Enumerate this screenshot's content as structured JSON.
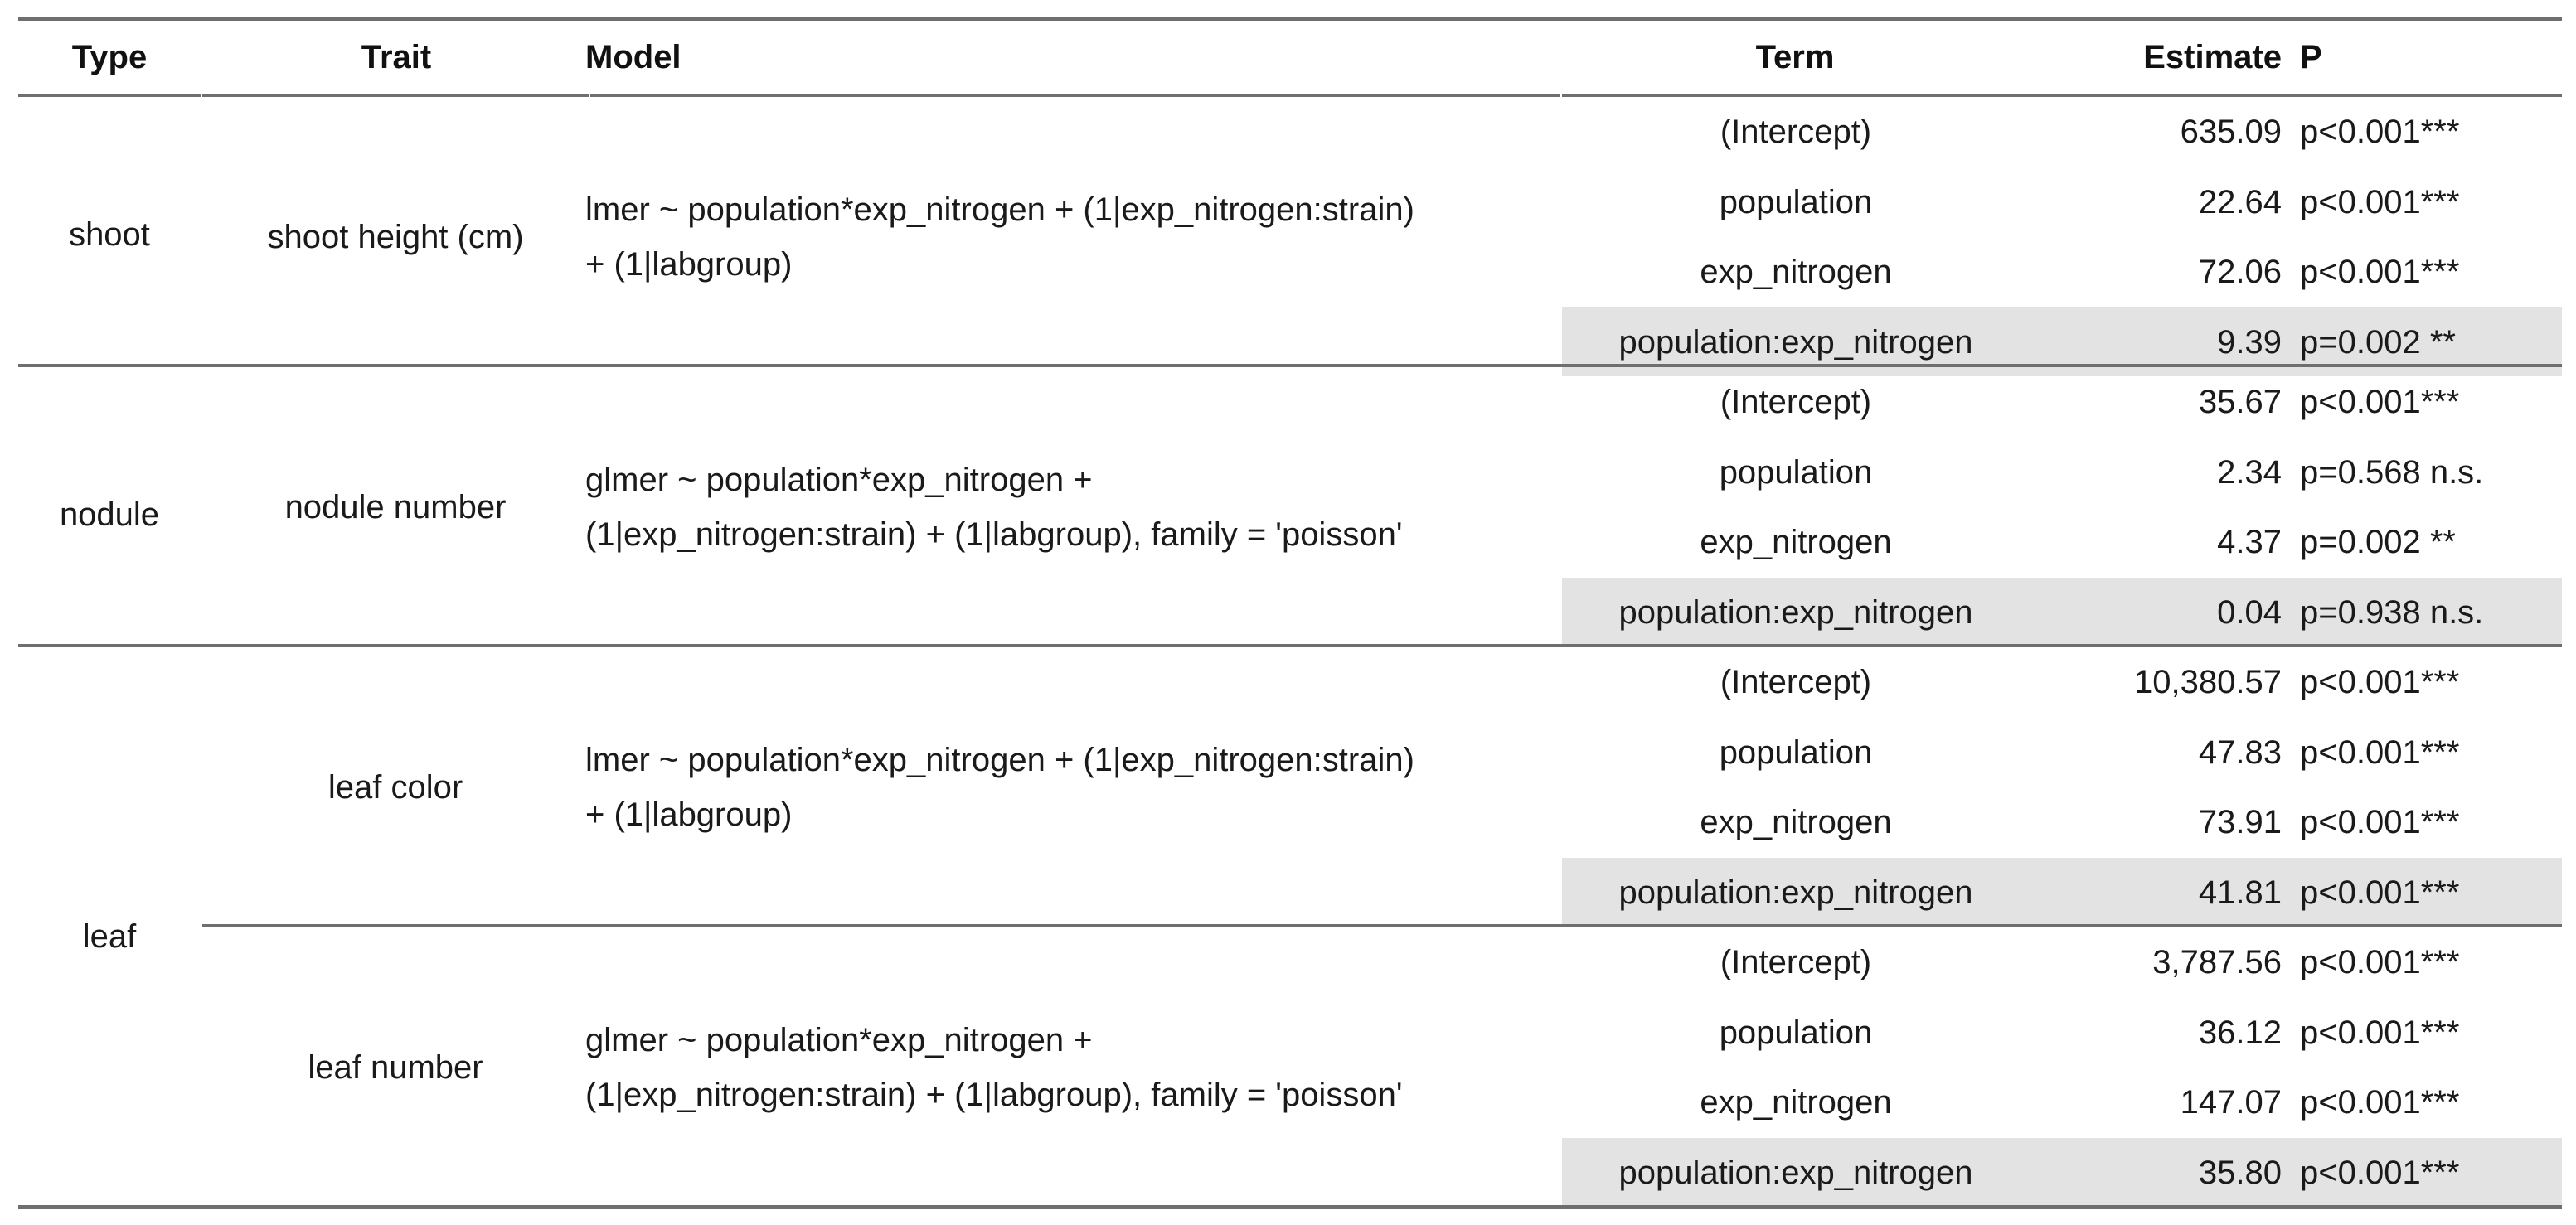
{
  "headers": {
    "type": "Type",
    "trait": "Trait",
    "model": "Model",
    "term": "Term",
    "estimate": "Estimate",
    "p": "P"
  },
  "types": {
    "shoot": "shoot",
    "nodule": "nodule",
    "leaf": "leaf"
  },
  "groups": [
    {
      "trait": "shoot height (cm)",
      "model_line1": "lmer ~ population*exp_nitrogen + (1|exp_nitrogen:strain)",
      "model_line2": "+ (1|labgroup)",
      "rows": [
        {
          "term": "(Intercept)",
          "estimate": "635.09",
          "p": "p<0.001***"
        },
        {
          "term": "population",
          "estimate": "22.64",
          "p": "p<0.001***"
        },
        {
          "term": "exp_nitrogen",
          "estimate": "72.06",
          "p": "p<0.001***"
        },
        {
          "term": "population:exp_nitrogen",
          "estimate": "9.39",
          "p": "p=0.002 **"
        }
      ]
    },
    {
      "trait": "nodule number",
      "model_line1": "glmer ~ population*exp_nitrogen +",
      "model_line2": "(1|exp_nitrogen:strain) + (1|labgroup), family = 'poisson'",
      "rows": [
        {
          "term": "(Intercept)",
          "estimate": "35.67",
          "p": "p<0.001***"
        },
        {
          "term": "population",
          "estimate": "2.34",
          "p": "p=0.568 n.s."
        },
        {
          "term": "exp_nitrogen",
          "estimate": "4.37",
          "p": "p=0.002 **"
        },
        {
          "term": "population:exp_nitrogen",
          "estimate": "0.04",
          "p": "p=0.938 n.s."
        }
      ]
    },
    {
      "trait": "leaf color",
      "model_line1": "lmer ~ population*exp_nitrogen + (1|exp_nitrogen:strain)",
      "model_line2": "+ (1|labgroup)",
      "rows": [
        {
          "term": "(Intercept)",
          "estimate": "10,380.57",
          "p": "p<0.001***"
        },
        {
          "term": "population",
          "estimate": "47.83",
          "p": "p<0.001***"
        },
        {
          "term": "exp_nitrogen",
          "estimate": "73.91",
          "p": "p<0.001***"
        },
        {
          "term": "population:exp_nitrogen",
          "estimate": "41.81",
          "p": "p<0.001***"
        }
      ]
    },
    {
      "trait": "leaf number",
      "model_line1": "glmer ~ population*exp_nitrogen +",
      "model_line2": "(1|exp_nitrogen:strain) + (1|labgroup), family = 'poisson'",
      "rows": [
        {
          "term": "(Intercept)",
          "estimate": "3,787.56",
          "p": "p<0.001***"
        },
        {
          "term": "population",
          "estimate": "36.12",
          "p": "p<0.001***"
        },
        {
          "term": "exp_nitrogen",
          "estimate": "147.07",
          "p": "p<0.001***"
        },
        {
          "term": "population:exp_nitrogen",
          "estimate": "35.80",
          "p": "p<0.001***"
        }
      ]
    }
  ],
  "colors": {
    "rule": "#6f6f6f",
    "shade": "#e3e3e3",
    "text": "#111111"
  }
}
